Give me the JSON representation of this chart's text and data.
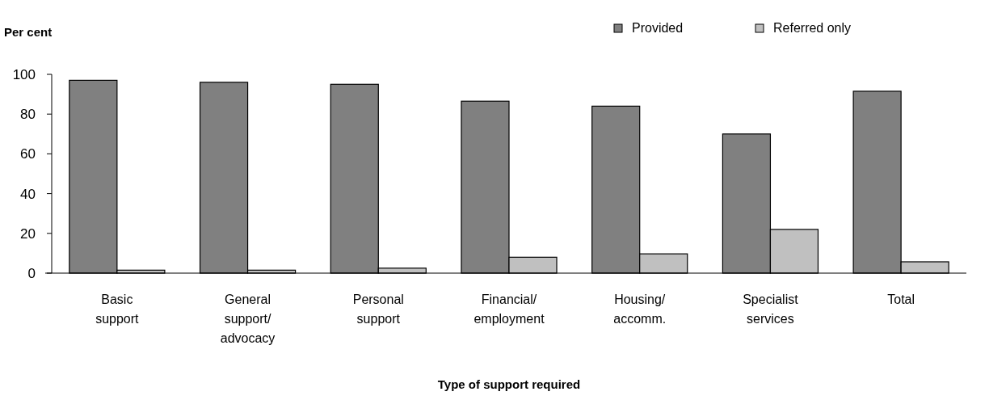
{
  "chart_data": {
    "type": "bar",
    "ylabel": "Per cent",
    "xlabel": "Type of support required",
    "categories": [
      "Basic\nsupport",
      "General\nsupport/\nadvocacy",
      "Personal\nsupport",
      "Financial/\nemployment",
      "Housing/\naccomm.",
      "Specialist\nservices",
      "Total"
    ],
    "series": [
      {
        "name": "Provided",
        "color": "#808080",
        "values": [
          97,
          96,
          95,
          86.5,
          84,
          70,
          91.5
        ]
      },
      {
        "name": "Referred only",
        "color": "#c0c0c0",
        "values": [
          1.5,
          1.5,
          2.5,
          8,
          9.7,
          22,
          5.7
        ]
      }
    ],
    "ylim": [
      0,
      100
    ],
    "yticks": [
      0,
      20,
      40,
      60,
      80,
      100
    ],
    "grid": false,
    "legend": "top right"
  }
}
